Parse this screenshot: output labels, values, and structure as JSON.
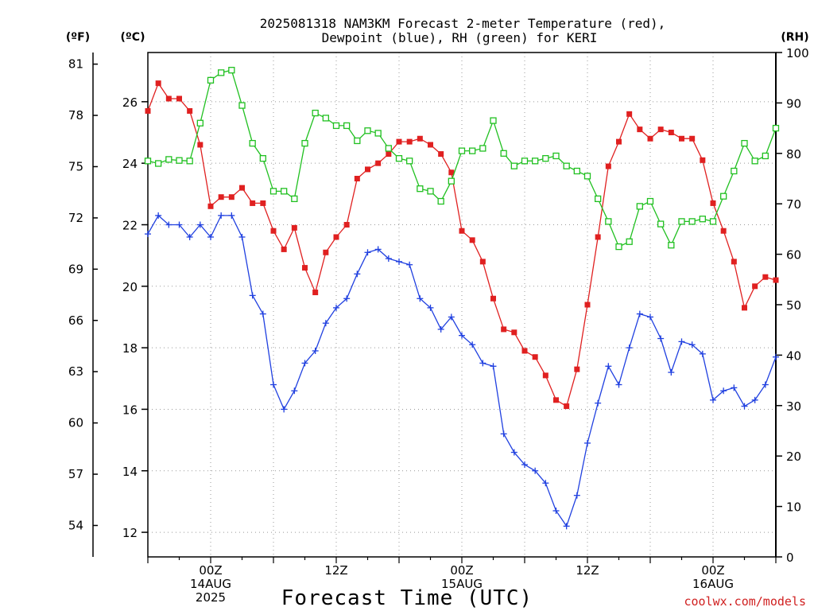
{
  "chart_data": {
    "type": "line",
    "title_line1": "2025081318 NAM3KM Forecast 2-meter Temperature (red),",
    "title_line2": "Dewpoint (blue), RH (green) for KERI",
    "left_outer_unit": "(ºF)",
    "left_inner_unit": "(ºC)",
    "right_unit": "(RH)",
    "xlabel": "Forecast Time (UTC)",
    "credit": "coolwx.com/models",
    "x_ticks": [
      {
        "hour": 6,
        "lines": [
          "00Z",
          "14AUG",
          "2025"
        ]
      },
      {
        "hour": 18,
        "lines": [
          "12Z"
        ]
      },
      {
        "hour": 30,
        "lines": [
          "00Z",
          "15AUG"
        ]
      },
      {
        "hour": 42,
        "lines": [
          "12Z"
        ]
      },
      {
        "hour": 54,
        "lines": [
          "00Z",
          "16AUG"
        ]
      }
    ],
    "xlim": [
      0,
      60
    ],
    "celsius_ticks": [
      12,
      14,
      16,
      18,
      20,
      22,
      24,
      26
    ],
    "celsius_lim": [
      11.2,
      27.6
    ],
    "fahrenheit_ticks": [
      54,
      57,
      60,
      63,
      66,
      69,
      72,
      75,
      78,
      81
    ],
    "rh_ticks": [
      0,
      10,
      20,
      30,
      40,
      50,
      60,
      70,
      80,
      90,
      100
    ],
    "rh_lim": [
      0,
      100
    ],
    "grid": true,
    "series": [
      {
        "name": "Temperature",
        "color": "#e02020",
        "marker": "filled-square",
        "axis": "celsius",
        "values": [
          25.7,
          26.6,
          26.1,
          26.1,
          25.7,
          24.6,
          22.6,
          22.9,
          22.9,
          23.2,
          22.7,
          22.7,
          21.8,
          21.2,
          21.9,
          20.6,
          19.8,
          21.1,
          21.6,
          22.0,
          23.5,
          23.8,
          24.0,
          24.3,
          24.7,
          24.7,
          24.8,
          24.6,
          24.3,
          23.7,
          21.8,
          21.5,
          20.8,
          19.6,
          18.6,
          18.5,
          17.9,
          17.7,
          17.1,
          16.3,
          16.1,
          17.3,
          19.4,
          21.6,
          23.9,
          24.7,
          25.6,
          25.1,
          24.8,
          25.1,
          25.0,
          24.8,
          24.8,
          24.1,
          22.7,
          21.8,
          20.8,
          19.3,
          20.0,
          20.3,
          20.2
        ],
        "rh_values": null
      },
      {
        "name": "Dewpoint",
        "color": "#2040e0",
        "marker": "plus",
        "axis": "celsius",
        "values": [
          21.7,
          22.3,
          22.0,
          22.0,
          21.6,
          22.0,
          21.6,
          22.3,
          22.3,
          21.6,
          19.7,
          19.1,
          16.8,
          16.0,
          16.6,
          17.5,
          17.9,
          18.8,
          19.3,
          19.6,
          20.4,
          21.1,
          21.2,
          20.9,
          20.8,
          20.7,
          19.6,
          19.3,
          18.6,
          19.0,
          18.4,
          18.1,
          17.5,
          17.4,
          15.2,
          14.6,
          14.2,
          14.0,
          13.6,
          12.7,
          12.2,
          13.2,
          14.9,
          16.2,
          17.4,
          16.8,
          18.0,
          19.1,
          19.0,
          18.3,
          17.2,
          18.2,
          18.1,
          17.8,
          16.3,
          16.6,
          16.7,
          16.1,
          16.3,
          16.8,
          17.7
        ]
      },
      {
        "name": "RH",
        "color": "#20c020",
        "marker": "open-square",
        "axis": "rh",
        "values": [
          78.5,
          78.0,
          78.8,
          78.6,
          78.5,
          86.0,
          94.5,
          96.0,
          96.5,
          89.5,
          82.0,
          79.0,
          72.5,
          72.5,
          71.0,
          82.0,
          88.0,
          87.0,
          85.5,
          85.5,
          82.5,
          84.5,
          84.0,
          81.0,
          79.0,
          78.5,
          73.0,
          72.5,
          70.5,
          74.5,
          80.5,
          80.5,
          81.0,
          86.5,
          80.0,
          77.5,
          78.5,
          78.5,
          79.0,
          79.5,
          77.5,
          76.5,
          75.5,
          71.0,
          66.5,
          61.5,
          62.5,
          69.5,
          70.5,
          66.0,
          61.8,
          66.5,
          66.5,
          67.0,
          66.5,
          71.5,
          76.5,
          82.0,
          78.5,
          79.5,
          85.0
        ]
      }
    ]
  }
}
